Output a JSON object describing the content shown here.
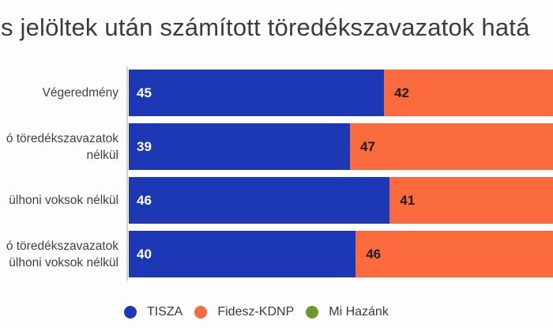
{
  "title": "s jelöltek után számított töredékszavazatok hatá",
  "colors": {
    "tisza_blue": "#1d38b4",
    "fidesz_orange": "#fb6a3c",
    "mi_hazank_green": "#6f982b",
    "title_text": "#3c3c3c",
    "category_text": "#3f4149",
    "axis_line": "#d0d3de",
    "background": "#fdfdfd"
  },
  "chart_data": {
    "type": "bar",
    "orientation": "horizontal",
    "stacked": true,
    "grid": false,
    "legend_position": "bottom",
    "bars_clipped_at_right_edge": true,
    "categories": [
      [
        "Végeredmény"
      ],
      [
        "ó töredékszavazatok",
        "nélkül"
      ],
      [
        "ülhoni voksok nélkül"
      ],
      [
        "ó töredékszavazatok",
        "ülhoni voksok nélkül"
      ]
    ],
    "series": [
      {
        "name": "TISZA",
        "color": "#1d38b4",
        "value_color": "#ffffff",
        "values": [
          45,
          39,
          46,
          40
        ]
      },
      {
        "name": "Fidesz-KDNP",
        "color": "#fb6a3c",
        "value_color": "#1c1c1c",
        "values": [
          42,
          47,
          41,
          46
        ]
      }
    ],
    "legend": [
      {
        "label": "TISZA",
        "color": "#1d38b4"
      },
      {
        "label": "Fidesz-KDNP",
        "color": "#fb6a3c"
      },
      {
        "label": "Mi Hazánk",
        "color": "#6f982b"
      }
    ]
  }
}
